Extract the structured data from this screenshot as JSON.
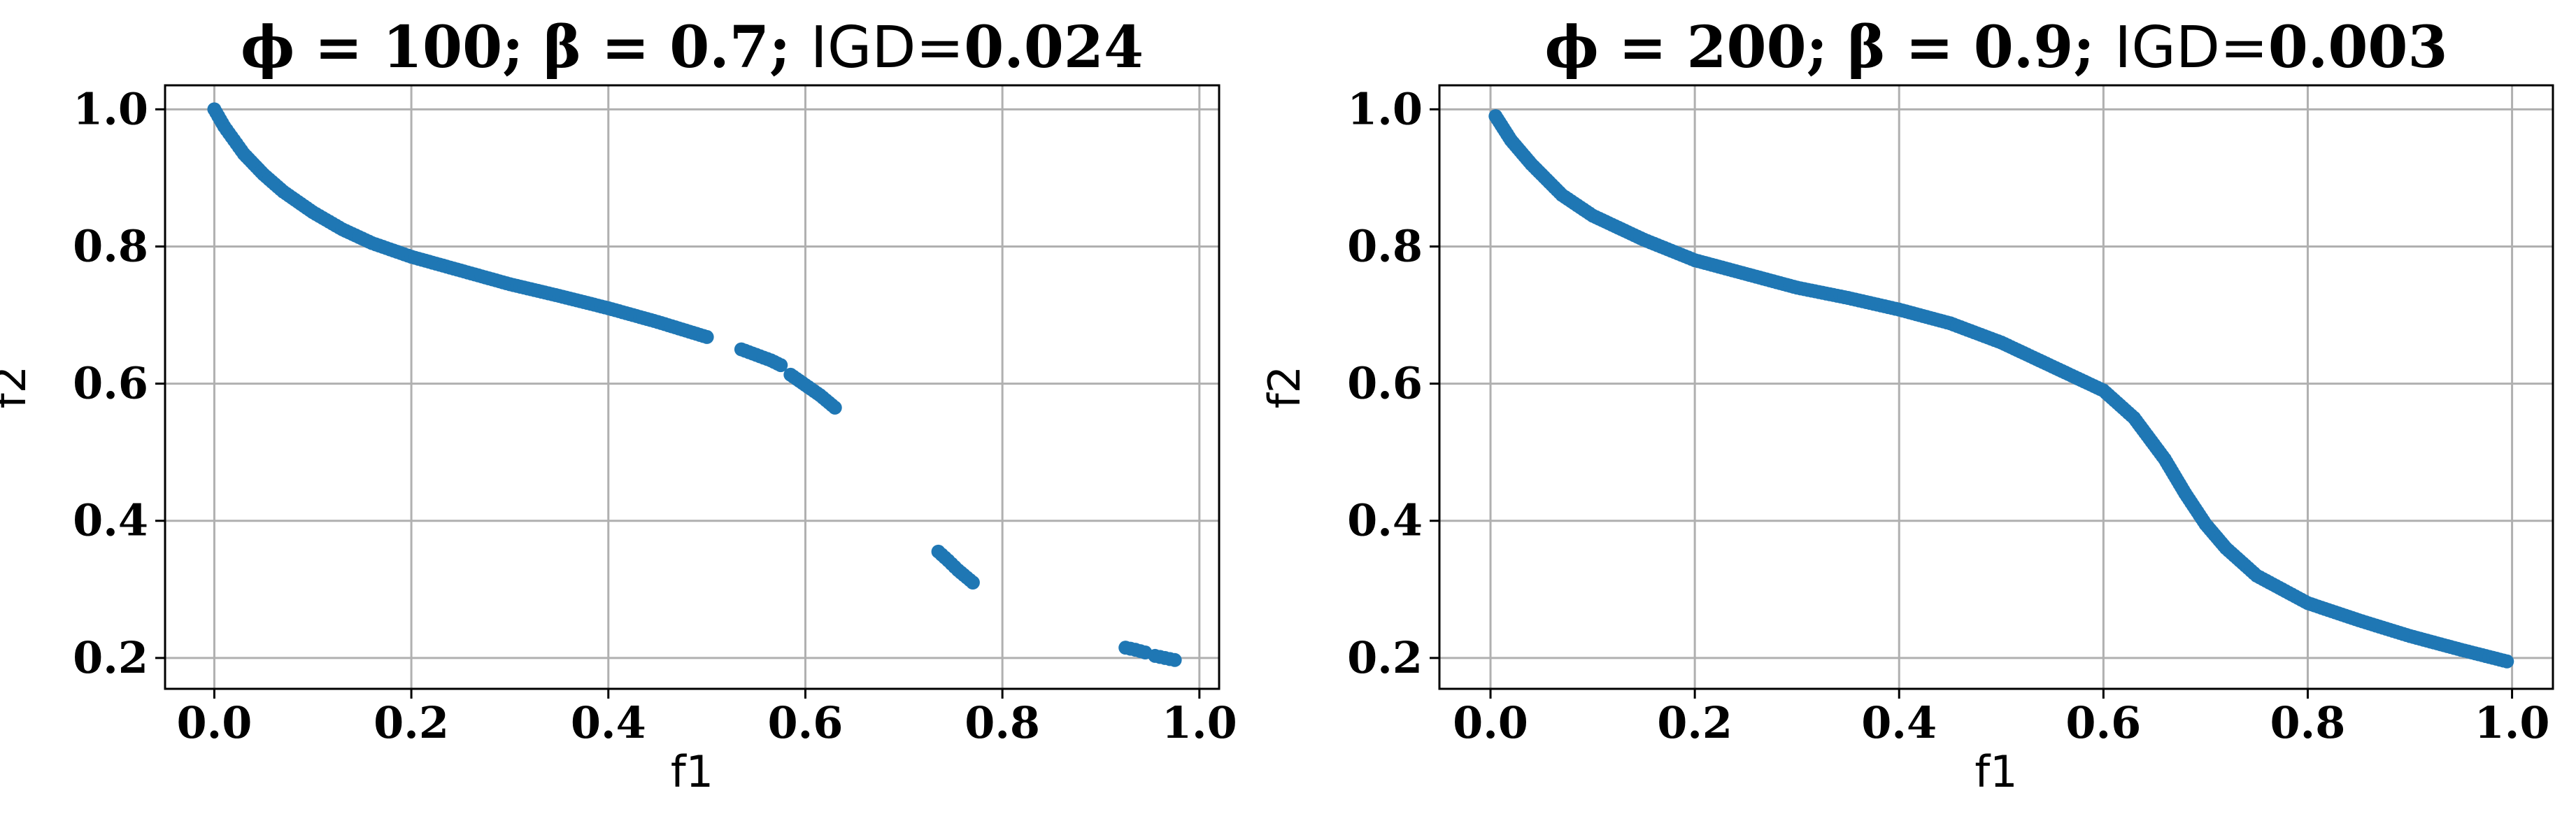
{
  "chart_data": [
    {
      "type": "scatter",
      "title": "ϕ = 100; β = 0.7; IGD=0.024",
      "title_parts": {
        "main": "ϕ = 100; β = 0.7; ",
        "igd_label": "IGD=",
        "igd_value": "0.024"
      },
      "xlabel": "f1",
      "ylabel": "f2",
      "xlim": [
        -0.05,
        1.02
      ],
      "ylim": [
        0.155,
        1.035
      ],
      "xticks": [
        "0.0",
        "0.2",
        "0.4",
        "0.6",
        "0.8",
        "1.0"
      ],
      "yticks": [
        "0.2",
        "0.4",
        "0.6",
        "0.8",
        "1.0"
      ],
      "grid": true,
      "color": "#1f77b4",
      "segments": [
        {
          "x": [
            0.0,
            0.01,
            0.02,
            0.03,
            0.05,
            0.07,
            0.1,
            0.13,
            0.16,
            0.2,
            0.25,
            0.3,
            0.35,
            0.4,
            0.45,
            0.5
          ],
          "y": [
            1.0,
            0.975,
            0.955,
            0.935,
            0.905,
            0.88,
            0.85,
            0.825,
            0.805,
            0.785,
            0.765,
            0.745,
            0.728,
            0.71,
            0.69,
            0.668
          ]
        },
        {
          "x": [
            0.535,
            0.55,
            0.565,
            0.575
          ],
          "y": [
            0.65,
            0.642,
            0.634,
            0.627
          ]
        },
        {
          "x": [
            0.585,
            0.6,
            0.615,
            0.63
          ],
          "y": [
            0.613,
            0.598,
            0.583,
            0.565
          ]
        },
        {
          "x": [
            0.735,
            0.745,
            0.755,
            0.77
          ],
          "y": [
            0.355,
            0.342,
            0.328,
            0.31
          ]
        },
        {
          "x": [
            0.925,
            0.935,
            0.945
          ],
          "y": [
            0.215,
            0.212,
            0.208
          ]
        },
        {
          "x": [
            0.955,
            0.965,
            0.975
          ],
          "y": [
            0.203,
            0.2,
            0.197
          ]
        }
      ]
    },
    {
      "type": "scatter",
      "title": "ϕ = 200; β = 0.9; IGD=0.003",
      "title_parts": {
        "main": "ϕ = 200; β = 0.9; ",
        "igd_label": "IGD=",
        "igd_value": "0.003"
      },
      "xlabel": "f1",
      "ylabel": "f2",
      "xlim": [
        -0.05,
        1.04
      ],
      "ylim": [
        0.155,
        1.035
      ],
      "xticks": [
        "0.0",
        "0.2",
        "0.4",
        "0.6",
        "0.8",
        "1.0"
      ],
      "yticks": [
        "0.2",
        "0.4",
        "0.6",
        "0.8",
        "1.0"
      ],
      "grid": true,
      "color": "#1f77b4",
      "segments": [
        {
          "x": [
            0.005,
            0.02,
            0.04,
            0.07,
            0.1,
            0.15,
            0.2,
            0.25,
            0.3,
            0.35,
            0.4,
            0.45,
            0.5,
            0.55,
            0.6,
            0.63,
            0.66,
            0.68,
            0.7,
            0.72,
            0.75,
            0.8,
            0.85,
            0.9,
            0.95,
            0.995
          ],
          "y": [
            0.99,
            0.955,
            0.92,
            0.875,
            0.845,
            0.81,
            0.78,
            0.76,
            0.74,
            0.725,
            0.708,
            0.688,
            0.66,
            0.625,
            0.59,
            0.55,
            0.49,
            0.44,
            0.395,
            0.36,
            0.32,
            0.28,
            0.255,
            0.232,
            0.212,
            0.195
          ]
        }
      ]
    }
  ]
}
